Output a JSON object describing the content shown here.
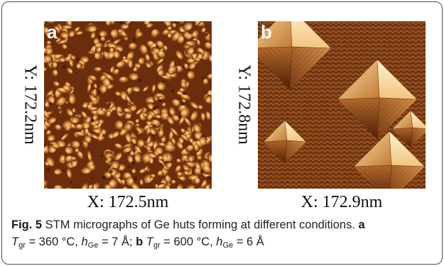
{
  "figure": {
    "panels": [
      {
        "letter": "a",
        "y_label": "Y: 172.2nm",
        "x_label": "X: 172.5nm",
        "colors": {
          "dark": "#4a1e05",
          "mid": "#9c4a12",
          "light": "#f1c27a"
        }
      },
      {
        "letter": "b",
        "y_label": "Y: 172.8nm",
        "x_label": "X: 172.9nm",
        "colors": {
          "dark": "#3b1a08",
          "mid": "#8a4418",
          "light": "#f6d39a"
        }
      }
    ],
    "caption": {
      "fig_label": "Fig. 5",
      "text": " STM micrographs of Ge huts forming at different conditions. ",
      "a_label": "a",
      "a_T_sym": "T",
      "a_T_sub": "gr",
      "a_T_val": " = 360 °C, ",
      "a_h_sym": "h",
      "a_h_sub": "Ge",
      "a_h_val": " = 7 Å; ",
      "b_label": "b",
      "b_T_sym": " T",
      "b_T_sub": "gr",
      "b_T_val": " = 600 °C, ",
      "b_h_sym": "h",
      "b_h_sub": "Ge",
      "b_h_val": " = 6 Å"
    }
  }
}
